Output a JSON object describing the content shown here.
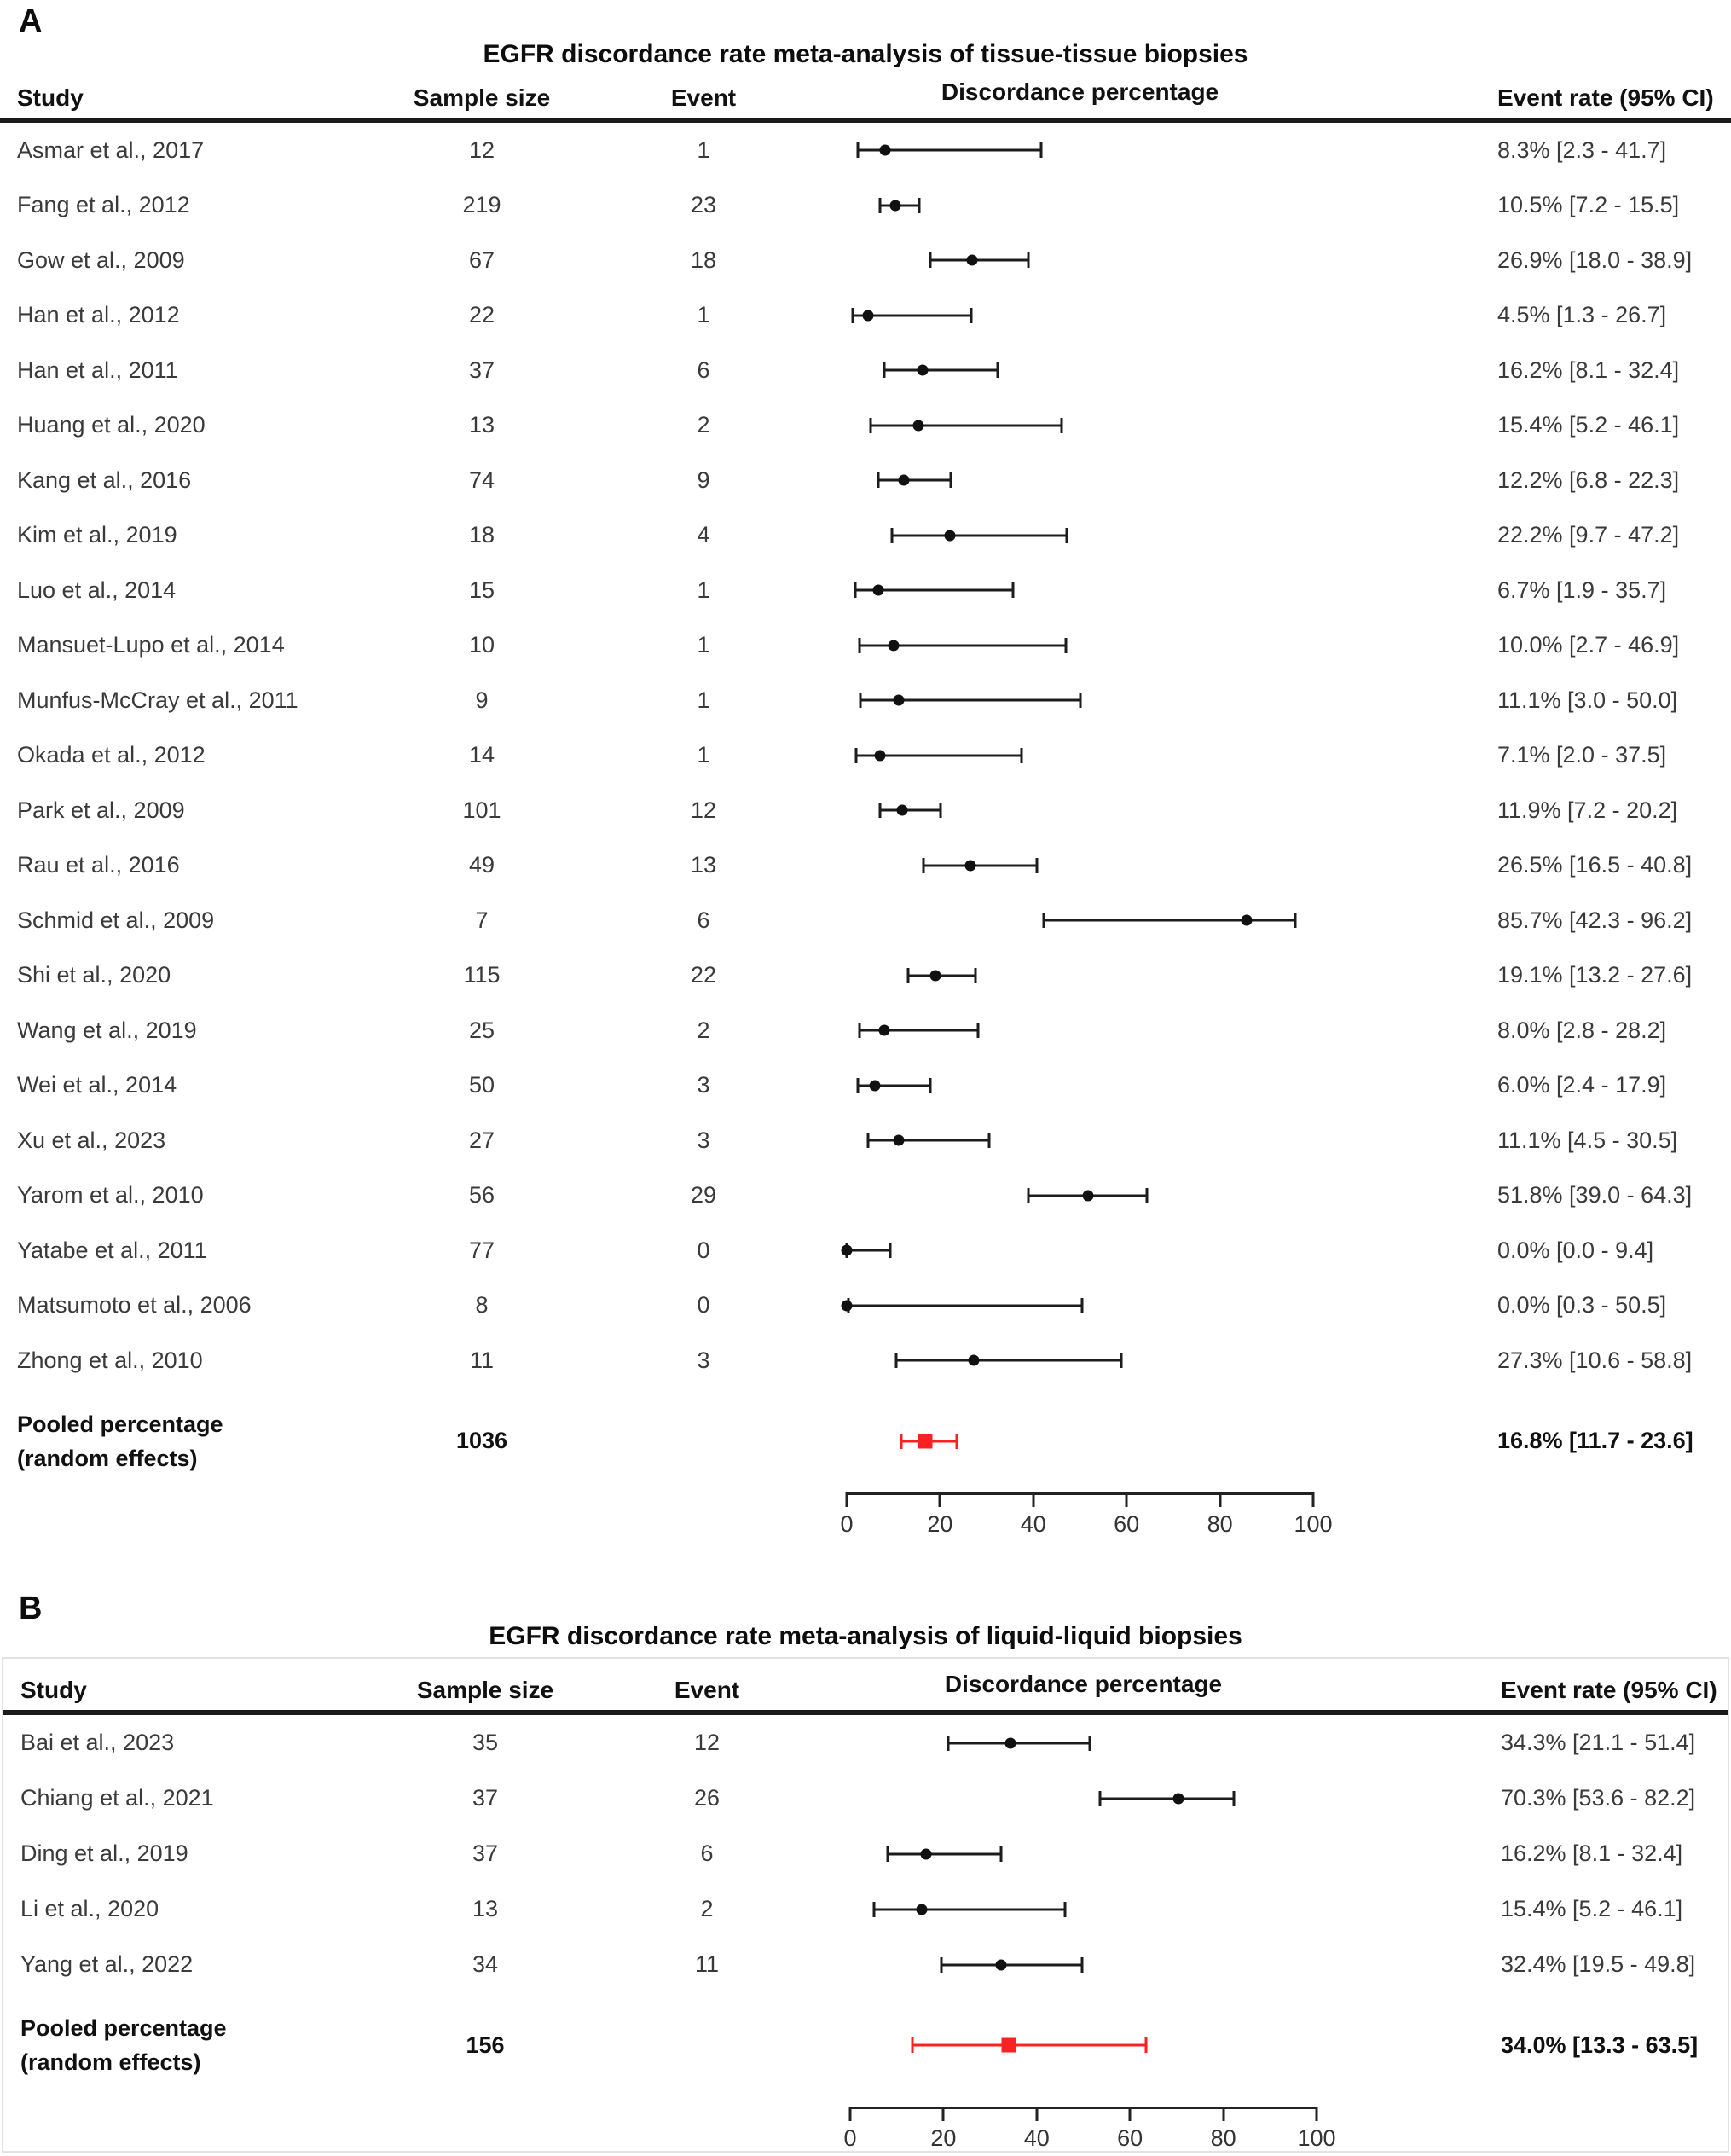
{
  "colors": {
    "pooled_red": "#f82222",
    "marker_black": "#1c1c1c",
    "header_rule": "#1a1a1a",
    "panel_b_border": "#e2e2e2"
  },
  "chart_data": [
    {
      "type": "scatter",
      "variant": "forest-plot",
      "panel_label": "A",
      "title": "EGFR discordance rate meta-analysis of tissue-tissue biopsies",
      "columns": {
        "study": "Study",
        "sample": "Sample size",
        "event": "Event",
        "plot": "Discordance percentage",
        "rate": "Event rate (95% CI)"
      },
      "xlim": [
        0,
        100
      ],
      "xticks": [
        0,
        20,
        40,
        60,
        80,
        100
      ],
      "studies": [
        {
          "name": "Asmar et al., 2017",
          "sample": 12,
          "event": 1,
          "est": 8.3,
          "lo": 2.3,
          "hi": 41.7,
          "rate": "8.3% [2.3 - 41.7]"
        },
        {
          "name": "Fang et al., 2012",
          "sample": 219,
          "event": 23,
          "est": 10.5,
          "lo": 7.2,
          "hi": 15.5,
          "rate": "10.5% [7.2 - 15.5]"
        },
        {
          "name": "Gow et al., 2009",
          "sample": 67,
          "event": 18,
          "est": 26.9,
          "lo": 18.0,
          "hi": 38.9,
          "rate": "26.9% [18.0 - 38.9]"
        },
        {
          "name": "Han et al., 2012",
          "sample": 22,
          "event": 1,
          "est": 4.5,
          "lo": 1.3,
          "hi": 26.7,
          "rate": "4.5% [1.3 - 26.7]"
        },
        {
          "name": "Han et al., 2011",
          "sample": 37,
          "event": 6,
          "est": 16.2,
          "lo": 8.1,
          "hi": 32.4,
          "rate": "16.2% [8.1 - 32.4]"
        },
        {
          "name": "Huang et al., 2020",
          "sample": 13,
          "event": 2,
          "est": 15.4,
          "lo": 5.2,
          "hi": 46.1,
          "rate": "15.4% [5.2 - 46.1]"
        },
        {
          "name": "Kang et al., 2016",
          "sample": 74,
          "event": 9,
          "est": 12.2,
          "lo": 6.8,
          "hi": 22.3,
          "rate": "12.2% [6.8 - 22.3]"
        },
        {
          "name": "Kim et al., 2019",
          "sample": 18,
          "event": 4,
          "est": 22.2,
          "lo": 9.7,
          "hi": 47.2,
          "rate": "22.2% [9.7 - 47.2]"
        },
        {
          "name": "Luo et al., 2014",
          "sample": 15,
          "event": 1,
          "est": 6.7,
          "lo": 1.9,
          "hi": 35.7,
          "rate": "6.7% [1.9 - 35.7]"
        },
        {
          "name": "Mansuet-Lupo et al., 2014",
          "sample": 10,
          "event": 1,
          "est": 10.0,
          "lo": 2.7,
          "hi": 46.9,
          "rate": "10.0% [2.7 - 46.9]"
        },
        {
          "name": "Munfus-McCray et al., 2011",
          "sample": 9,
          "event": 1,
          "est": 11.1,
          "lo": 3.0,
          "hi": 50.0,
          "rate": "11.1% [3.0 - 50.0]"
        },
        {
          "name": "Okada et al., 2012",
          "sample": 14,
          "event": 1,
          "est": 7.1,
          "lo": 2.0,
          "hi": 37.5,
          "rate": "7.1% [2.0 - 37.5]"
        },
        {
          "name": "Park et al., 2009",
          "sample": 101,
          "event": 12,
          "est": 11.9,
          "lo": 7.2,
          "hi": 20.2,
          "rate": "11.9% [7.2 - 20.2]"
        },
        {
          "name": "Rau et al., 2016",
          "sample": 49,
          "event": 13,
          "est": 26.5,
          "lo": 16.5,
          "hi": 40.8,
          "rate": "26.5% [16.5 - 40.8]"
        },
        {
          "name": "Schmid et al., 2009",
          "sample": 7,
          "event": 6,
          "est": 85.7,
          "lo": 42.3,
          "hi": 96.2,
          "rate": "85.7% [42.3 - 96.2]"
        },
        {
          "name": "Shi et al., 2020",
          "sample": 115,
          "event": 22,
          "est": 19.1,
          "lo": 13.2,
          "hi": 27.6,
          "rate": "19.1% [13.2 - 27.6]"
        },
        {
          "name": "Wang et al., 2019",
          "sample": 25,
          "event": 2,
          "est": 8.0,
          "lo": 2.8,
          "hi": 28.2,
          "rate": "8.0% [2.8 - 28.2]"
        },
        {
          "name": "Wei et al., 2014",
          "sample": 50,
          "event": 3,
          "est": 6.0,
          "lo": 2.4,
          "hi": 17.9,
          "rate": "6.0% [2.4 - 17.9]"
        },
        {
          "name": "Xu et al., 2023",
          "sample": 27,
          "event": 3,
          "est": 11.1,
          "lo": 4.5,
          "hi": 30.5,
          "rate": "11.1% [4.5 - 30.5]"
        },
        {
          "name": "Yarom et al., 2010",
          "sample": 56,
          "event": 29,
          "est": 51.8,
          "lo": 39.0,
          "hi": 64.3,
          "rate": "51.8% [39.0 - 64.3]"
        },
        {
          "name": "Yatabe et al., 2011",
          "sample": 77,
          "event": 0,
          "est": 0.0,
          "lo": 0.0,
          "hi": 9.4,
          "rate": "0.0% [0.0 - 9.4]"
        },
        {
          "name": "Matsumoto et al., 2006",
          "sample": 8,
          "event": 0,
          "est": 0.0,
          "lo": 0.3,
          "hi": 50.5,
          "rate": "0.0% [0.3 - 50.5]"
        },
        {
          "name": "Zhong et al., 2010",
          "sample": 11,
          "event": 3,
          "est": 27.3,
          "lo": 10.6,
          "hi": 58.8,
          "rate": "27.3% [10.6 - 58.8]"
        }
      ],
      "pooled": {
        "label_line1": "Pooled percentage",
        "label_line2": "(random effects)",
        "sample": 1036,
        "est": 16.8,
        "lo": 11.7,
        "hi": 23.6,
        "rate": "16.8% [11.7 - 23.6]"
      }
    },
    {
      "type": "scatter",
      "variant": "forest-plot",
      "panel_label": "B",
      "title": "EGFR discordance rate meta-analysis of liquid-liquid biopsies",
      "columns": {
        "study": "Study",
        "sample": "Sample size",
        "event": "Event",
        "plot": "Discordance percentage",
        "rate": "Event rate (95% CI)"
      },
      "xlim": [
        0,
        100
      ],
      "xticks": [
        0,
        20,
        40,
        60,
        80,
        100
      ],
      "studies": [
        {
          "name": "Bai et al., 2023",
          "sample": 35,
          "event": 12,
          "est": 34.3,
          "lo": 21.1,
          "hi": 51.4,
          "rate": "34.3% [21.1 - 51.4]"
        },
        {
          "name": "Chiang et al., 2021",
          "sample": 37,
          "event": 26,
          "est": 70.3,
          "lo": 53.6,
          "hi": 82.2,
          "rate": "70.3% [53.6 - 82.2]"
        },
        {
          "name": "Ding et al., 2019",
          "sample": 37,
          "event": 6,
          "est": 16.2,
          "lo": 8.1,
          "hi": 32.4,
          "rate": "16.2% [8.1 - 32.4]"
        },
        {
          "name": "Li et al., 2020",
          "sample": 13,
          "event": 2,
          "est": 15.4,
          "lo": 5.2,
          "hi": 46.1,
          "rate": "15.4% [5.2 - 46.1]"
        },
        {
          "name": "Yang et al., 2022",
          "sample": 34,
          "event": 11,
          "est": 32.4,
          "lo": 19.5,
          "hi": 49.8,
          "rate": "32.4% [19.5 - 49.8]"
        }
      ],
      "pooled": {
        "label_line1": "Pooled percentage",
        "label_line2": "(random effects)",
        "sample": 156,
        "est": 34.0,
        "lo": 13.3,
        "hi": 63.5,
        "rate": "34.0% [13.3 - 63.5]"
      }
    }
  ]
}
